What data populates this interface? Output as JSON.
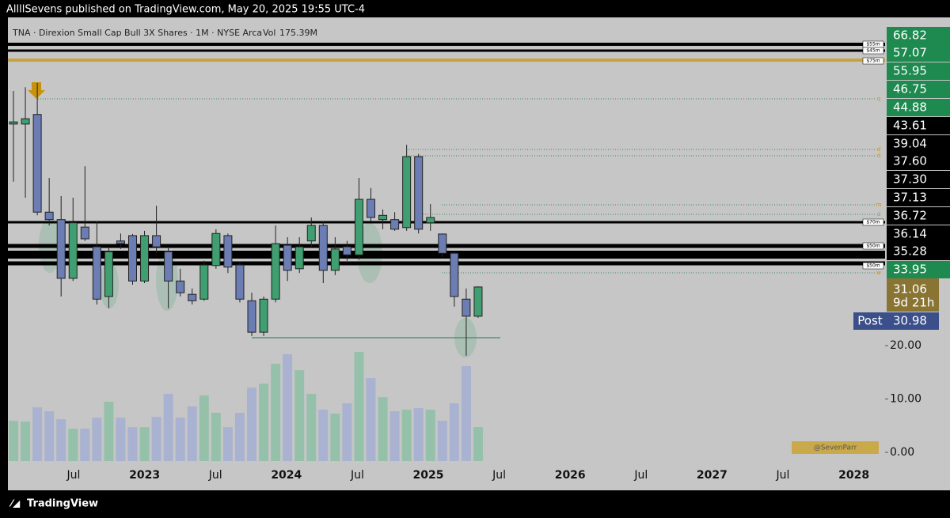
{
  "header": {
    "publisher": "AllllSevens published on TradingView.com, May 20, 2025 19:55 UTC-4",
    "footer": "TradingView"
  },
  "chart_data": {
    "type": "candlestick",
    "legend": {
      "symbol": "TNA · Direxion Small Cap Bull 3X Shares · 1M · NYSE Arca",
      "vol_label": "Vol",
      "vol_value": "175.39M"
    },
    "watermark": "@SevenParr",
    "up_color": "#3f9f70",
    "down_color": "#6b7db3",
    "open": [
      61.5,
      61.5,
      63.3,
      45.0,
      43.6,
      32.6,
      42.2,
      38.5,
      29.2,
      39.6,
      40.6,
      32.1,
      40.6,
      37.6,
      32.1,
      29.6,
      28.7,
      35.0,
      40.6,
      35.1,
      28.4,
      22.5,
      28.7,
      38.8,
      34.4,
      39.6,
      42.5,
      34.1,
      38.5,
      37.0,
      47.4,
      43.6,
      43.6,
      42.1,
      55.4,
      43.0,
      40.9,
      37.3,
      28.7,
      25.5
    ],
    "high": [
      67.7,
      68.4,
      69.2,
      51.4,
      48.0,
      47.7,
      53.6,
      43.3,
      38.5,
      41.0,
      40.9,
      41.5,
      46.2,
      38.5,
      34.4,
      30.7,
      35.9,
      41.8,
      41.0,
      35.6,
      29.9,
      29.2,
      42.5,
      40.3,
      40.3,
      44.0,
      43.3,
      40.3,
      39.6,
      51.4,
      49.5,
      45.5,
      45.0,
      57.6,
      55.9,
      46.5,
      41.0,
      37.6,
      30.7,
      31.1
    ],
    "low": [
      50.7,
      47.7,
      44.4,
      42.5,
      29.2,
      32.1,
      39.6,
      27.7,
      27.0,
      38.1,
      31.4,
      31.7,
      37.3,
      27.0,
      29.2,
      27.7,
      28.4,
      34.4,
      33.6,
      28.1,
      21.8,
      21.8,
      28.1,
      32.1,
      33.6,
      38.5,
      31.7,
      33.2,
      35.9,
      36.1,
      43.3,
      41.8,
      41.5,
      41.5,
      41.0,
      41.5,
      36.6,
      27.3,
      18.1,
      25.2
    ],
    "close": [
      61.9,
      62.5,
      45.0,
      43.6,
      32.6,
      43.0,
      40.0,
      28.7,
      37.6,
      39.1,
      32.1,
      40.6,
      38.5,
      32.1,
      29.9,
      28.4,
      35.1,
      41.0,
      34.7,
      28.7,
      22.5,
      28.7,
      39.1,
      34.1,
      38.5,
      42.5,
      34.1,
      38.1,
      37.0,
      47.4,
      44.0,
      44.4,
      41.8,
      55.4,
      41.8,
      44.0,
      37.3,
      29.2,
      25.5,
      30.98
    ],
    "volume": [
      208,
      204,
      277,
      257,
      216,
      167,
      167,
      224,
      306,
      224,
      175,
      175,
      228,
      347,
      224,
      282,
      339,
      249,
      175,
      249,
      379,
      400,
      502,
      551,
      469,
      347,
      265,
      245,
      298,
      563,
      428,
      330,
      257,
      265,
      273,
      265,
      208,
      298,
      490,
      175.39
    ],
    "ylim": [
      -1.63,
      81.48
    ],
    "vol_ylim": [
      0,
      2289
    ],
    "yticks": [
      {
        "value": 20,
        "label": "20.00"
      },
      {
        "value": 10,
        "label": "10.00"
      },
      {
        "value": 0,
        "label": "0.00"
      }
    ],
    "x_axis_labels": [
      "Jul",
      "2023",
      "Jul",
      "2024",
      "Jul",
      "2025",
      "Jul",
      "2026",
      "Jul",
      "2027",
      "Jul",
      "2028"
    ],
    "level_labels": [
      "$55m",
      "$45m",
      "$75m",
      "$70m",
      "$50m",
      "$50m"
    ],
    "marker_letters": [
      "q",
      "d",
      "d",
      "m",
      "d",
      "w"
    ],
    "price_tags": [
      {
        "label": "66.82",
        "color": "#1e8a50"
      },
      {
        "label": "57.07",
        "color": "#1e8a50"
      },
      {
        "label": "55.95",
        "color": "#1e8a50"
      },
      {
        "label": "46.75",
        "color": "#1e8a50"
      },
      {
        "label": "44.88",
        "color": "#1e8a50"
      },
      {
        "label": "43.61",
        "color": "#000000"
      },
      {
        "label": "39.04",
        "color": "#000000"
      },
      {
        "label": "37.60",
        "color": "#000000"
      },
      {
        "label": "37.30",
        "color": "#000000"
      },
      {
        "label": "37.13",
        "color": "#000000"
      },
      {
        "label": "36.72",
        "color": "#000000"
      },
      {
        "label": "36.14",
        "color": "#000000"
      },
      {
        "label": "35.28",
        "color": "#000000"
      },
      {
        "label": "33.95",
        "color": "#1e8a50"
      }
    ],
    "last_tag": {
      "label": "31.06",
      "countdown": "9d 21h",
      "color": "#8a7434"
    },
    "post_tag": {
      "name": "Post",
      "label": "30.98",
      "color": "#3b4f8a"
    }
  }
}
